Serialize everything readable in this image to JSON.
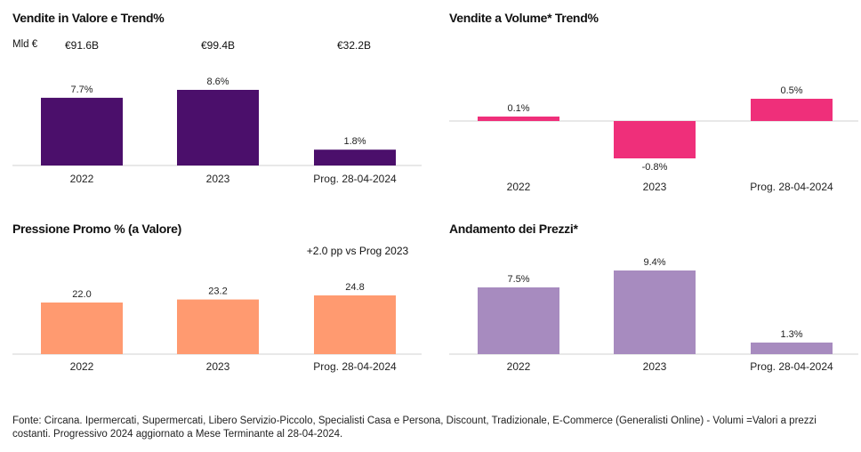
{
  "colors": {
    "vendite_valore": "#4b0f6b",
    "vendite_volume": "#ef2f7a",
    "pressione_promo": "#ff9a70",
    "andamento_prezzi": "#a78bbf",
    "axis": "#d0d0d0"
  },
  "panels": {
    "vendite_valore": {
      "title": "Vendite in Valore e Trend%",
      "unit_label": "Mld €",
      "header_values": [
        "€91.6B",
        "€99.4B",
        "€32.2B"
      ]
    },
    "vendite_volume": {
      "title": "Vendite a Volume* Trend%"
    },
    "pressione_promo": {
      "title": "Pressione Promo % (a Valore)",
      "note": "+2.0 pp vs Prog 2023"
    },
    "andamento_prezzi": {
      "title": "Andamento dei Prezzi*"
    }
  },
  "chart_data": [
    {
      "type": "bar",
      "title": "Vendite in Valore e Trend%",
      "categories": [
        "2022",
        "2023",
        "Prog. 28-04-2024"
      ],
      "values": [
        7.7,
        8.6,
        1.8
      ],
      "labels": [
        "7.7%",
        "8.6%",
        "1.8%"
      ],
      "ylim": [
        0,
        8.6
      ]
    },
    {
      "type": "bar",
      "title": "Vendite a Volume* Trend%",
      "categories": [
        "2022",
        "2023",
        "Prog. 28-04-2024"
      ],
      "values": [
        0.1,
        -0.8,
        0.5
      ],
      "labels": [
        "0.1%",
        "-0.8%",
        "0.5%"
      ],
      "ylim": [
        -0.8,
        0.5
      ]
    },
    {
      "type": "bar",
      "title": "Pressione Promo % (a Valore)",
      "categories": [
        "2022",
        "2023",
        "Prog. 28-04-2024"
      ],
      "values": [
        22.0,
        23.2,
        24.8
      ],
      "labels": [
        "22.0",
        "23.2",
        "24.8"
      ],
      "ylim": [
        0,
        24.8
      ]
    },
    {
      "type": "bar",
      "title": "Andamento dei Prezzi*",
      "categories": [
        "2022",
        "2023",
        "Prog. 28-04-2024"
      ],
      "values": [
        7.5,
        9.4,
        1.3
      ],
      "labels": [
        "7.5%",
        "9.4%",
        "1.3%"
      ],
      "ylim": [
        0,
        9.4
      ]
    }
  ],
  "footer": "Fonte: Circana. Ipermercati, Supermercati, Libero Servizio-Piccolo, Specialisti Casa e Persona, Discount, Tradizionale, E-Commerce (Generalisti Online) - Volumi =Valori a prezzi costanti. Progressivo 2024 aggiornato a Mese Terminante al 28-04-2024."
}
